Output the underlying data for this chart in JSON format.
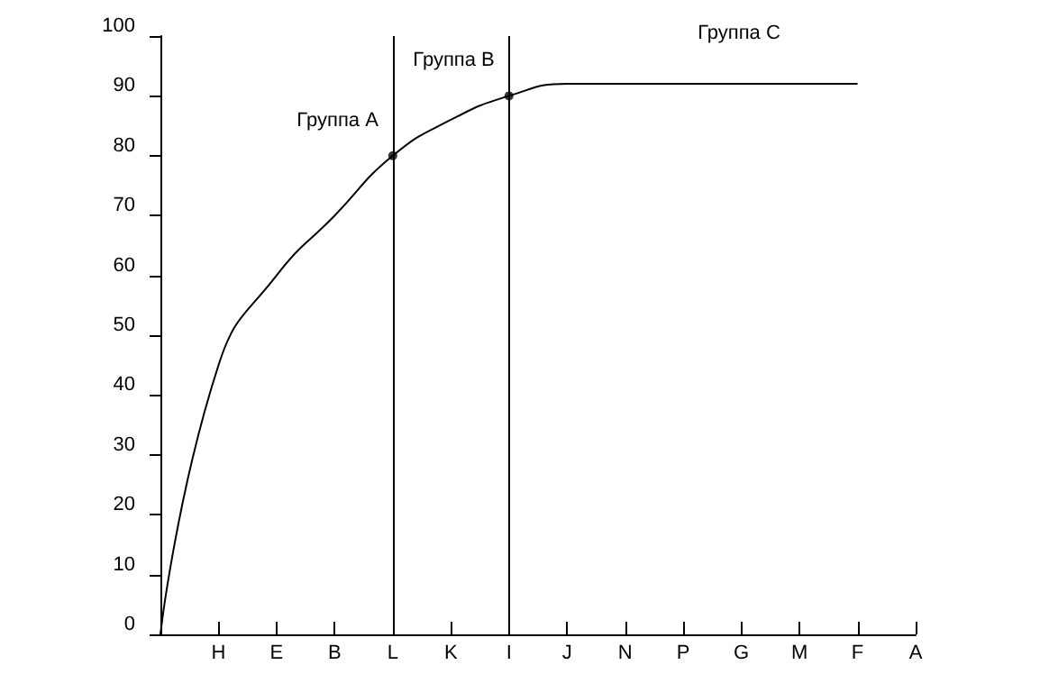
{
  "chart_data": {
    "type": "line",
    "categories": [
      null,
      "H",
      "E",
      "B",
      "L",
      "K",
      "I",
      "J",
      "N",
      "P",
      "G",
      "M",
      "F",
      "A"
    ],
    "values": [
      0,
      45,
      60,
      70,
      80,
      86,
      90,
      92,
      92,
      92,
      92,
      92,
      92,
      null
    ],
    "color": "#000000",
    "ylim": [
      0,
      100
    ],
    "yticks": [
      0,
      10,
      20,
      30,
      40,
      50,
      60,
      70,
      80,
      90,
      100
    ],
    "grid": false,
    "marker": "none",
    "line_style": "solid",
    "ref_lines": [
      {
        "axis": "x",
        "value": "L"
      },
      {
        "axis": "x",
        "value": "I"
      }
    ],
    "annotations": [
      {
        "text": "Группа A",
        "x": "L",
        "y": 80
      },
      {
        "text": "Группа B",
        "x": "I",
        "y": 90
      },
      "Группа C"
    ]
  }
}
